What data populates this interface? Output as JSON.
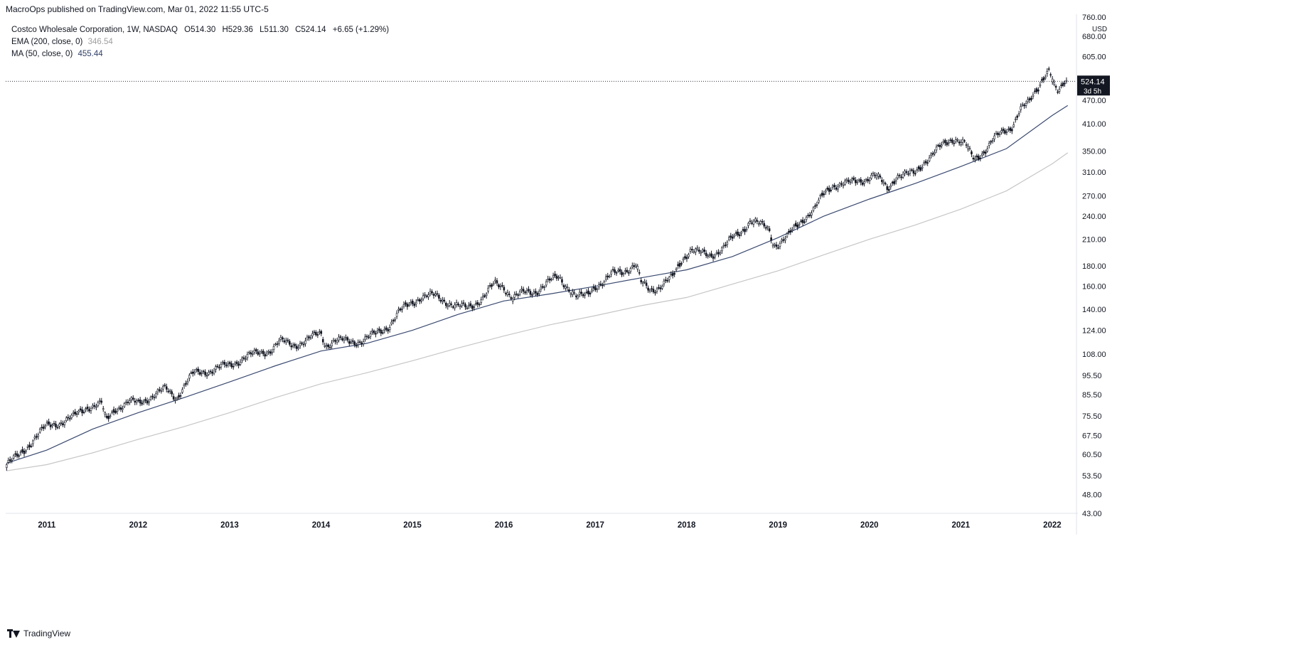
{
  "header": {
    "publisher": "MacroOps published on TradingView.com, Mar 01, 2022 11:55 UTC-5"
  },
  "legend": {
    "symbol": "Costco Wholesale Corporation, 1W, NASDAQ",
    "open": "O514.30",
    "high": "H529.36",
    "low": "L511.30",
    "close": "C524.14",
    "change": "+6.65 (+1.29%)",
    "ema_label": "EMA (200, close, 0)",
    "ema_value": "346.54",
    "ma_label": "MA (50, close, 0)",
    "ma_value": "455.44"
  },
  "price_badge": {
    "price": "524.14",
    "countdown": "3d 5h"
  },
  "footer": {
    "brand": "TradingView"
  },
  "colors": {
    "candle": "#131722",
    "ma50": "#3b4a70",
    "ema200": "#c6c6c6",
    "badge_bg": "#131722",
    "badge_text": "#ffffff"
  },
  "chart_data": {
    "type": "line",
    "y_scale": "log",
    "y_currency": "USD",
    "y_ticks": [
      "760.00",
      "680.00",
      "605.00",
      "470.00",
      "410.00",
      "350.00",
      "310.00",
      "270.00",
      "240.00",
      "210.00",
      "180.00",
      "160.00",
      "140.00",
      "124.00",
      "108.00",
      "95.50",
      "85.50",
      "75.50",
      "67.50",
      "60.50",
      "53.50",
      "48.00",
      "43.00"
    ],
    "x_ticks": [
      "2011",
      "2012",
      "2013",
      "2014",
      "2015",
      "2016",
      "2017",
      "2018",
      "2019",
      "2020",
      "2021",
      "2022"
    ],
    "ylim": [
      43,
      760
    ],
    "xlim": [
      2010.55,
      2022.25
    ],
    "last_price": 524.14,
    "price_series": {
      "name": "",
      "points": [
        [
          2010.56,
          57
        ],
        [
          2010.7,
          60
        ],
        [
          2010.85,
          66
        ],
        [
          2011.0,
          71
        ],
        [
          2011.15,
          73
        ],
        [
          2011.3,
          75
        ],
        [
          2011.45,
          80
        ],
        [
          2011.6,
          81
        ],
        [
          2011.65,
          73
        ],
        [
          2011.75,
          79
        ],
        [
          2011.9,
          82
        ],
        [
          2012.0,
          81
        ],
        [
          2012.15,
          85
        ],
        [
          2012.3,
          88
        ],
        [
          2012.42,
          84
        ],
        [
          2012.5,
          90
        ],
        [
          2012.6,
          96
        ],
        [
          2012.75,
          98
        ],
        [
          2012.9,
          100
        ],
        [
          2013.0,
          101
        ],
        [
          2013.15,
          106
        ],
        [
          2013.3,
          108
        ],
        [
          2013.45,
          111
        ],
        [
          2013.55,
          116
        ],
        [
          2013.7,
          114
        ],
        [
          2013.85,
          117
        ],
        [
          2014.0,
          122
        ],
        [
          2014.05,
          114
        ],
        [
          2014.15,
          117
        ],
        [
          2014.3,
          116
        ],
        [
          2014.45,
          117
        ],
        [
          2014.6,
          121
        ],
        [
          2014.75,
          128
        ],
        [
          2014.85,
          137
        ],
        [
          2015.0,
          146
        ],
        [
          2015.1,
          151
        ],
        [
          2015.25,
          151
        ],
        [
          2015.4,
          146
        ],
        [
          2015.5,
          142
        ],
        [
          2015.6,
          141
        ],
        [
          2015.7,
          146
        ],
        [
          2015.8,
          152
        ],
        [
          2015.9,
          162
        ],
        [
          2016.0,
          160
        ],
        [
          2016.1,
          150
        ],
        [
          2016.2,
          153
        ],
        [
          2016.35,
          156
        ],
        [
          2016.5,
          164
        ],
        [
          2016.6,
          169
        ],
        [
          2016.7,
          160
        ],
        [
          2016.8,
          150
        ],
        [
          2016.9,
          151
        ],
        [
          2017.0,
          161
        ],
        [
          2017.1,
          164
        ],
        [
          2017.2,
          172
        ],
        [
          2017.35,
          177
        ],
        [
          2017.45,
          181
        ],
        [
          2017.5,
          163
        ],
        [
          2017.6,
          157
        ],
        [
          2017.7,
          160
        ],
        [
          2017.85,
          168
        ],
        [
          2017.95,
          187
        ],
        [
          2018.05,
          199
        ],
        [
          2018.15,
          193
        ],
        [
          2018.25,
          191
        ],
        [
          2018.4,
          200
        ],
        [
          2018.5,
          210
        ],
        [
          2018.6,
          220
        ],
        [
          2018.7,
          235
        ],
        [
          2018.8,
          228
        ],
        [
          2018.9,
          223
        ],
        [
          2018.95,
          205
        ],
        [
          2019.0,
          205
        ],
        [
          2019.1,
          212
        ],
        [
          2019.2,
          226
        ],
        [
          2019.3,
          240
        ],
        [
          2019.4,
          250
        ],
        [
          2019.5,
          271
        ],
        [
          2019.6,
          288
        ],
        [
          2019.7,
          290
        ],
        [
          2019.8,
          290
        ],
        [
          2019.95,
          298
        ],
        [
          2020.05,
          305
        ],
        [
          2020.15,
          290
        ],
        [
          2020.2,
          280
        ],
        [
          2020.3,
          305
        ],
        [
          2020.45,
          305
        ],
        [
          2020.5,
          307
        ],
        [
          2020.6,
          330
        ],
        [
          2020.7,
          345
        ],
        [
          2020.8,
          360
        ],
        [
          2020.9,
          375
        ],
        [
          2020.95,
          378
        ],
        [
          2021.05,
          365
        ],
        [
          2021.1,
          345
        ],
        [
          2021.15,
          330
        ],
        [
          2021.25,
          350
        ],
        [
          2021.35,
          375
        ],
        [
          2021.45,
          385
        ],
        [
          2021.55,
          400
        ],
        [
          2021.65,
          450
        ],
        [
          2021.75,
          460
        ],
        [
          2021.85,
          505
        ],
        [
          2021.9,
          540
        ],
        [
          2021.97,
          567
        ],
        [
          2022.02,
          510
        ],
        [
          2022.07,
          485
        ],
        [
          2022.14,
          520
        ],
        [
          2022.17,
          524
        ]
      ]
    },
    "ma50_series": {
      "name": "MA (50, close, 0)",
      "points": [
        [
          2010.56,
          57.5
        ],
        [
          2011.0,
          62
        ],
        [
          2011.5,
          70
        ],
        [
          2012.0,
          77
        ],
        [
          2012.5,
          84
        ],
        [
          2013.0,
          92
        ],
        [
          2013.5,
          101
        ],
        [
          2014.0,
          110
        ],
        [
          2014.5,
          115
        ],
        [
          2015.0,
          124
        ],
        [
          2015.5,
          136
        ],
        [
          2016.0,
          147
        ],
        [
          2016.5,
          153
        ],
        [
          2017.0,
          160
        ],
        [
          2017.5,
          168
        ],
        [
          2018.0,
          176
        ],
        [
          2018.5,
          190
        ],
        [
          2019.0,
          212
        ],
        [
          2019.5,
          240
        ],
        [
          2020.0,
          265
        ],
        [
          2020.5,
          290
        ],
        [
          2021.0,
          320
        ],
        [
          2021.5,
          355
        ],
        [
          2022.0,
          430
        ],
        [
          2022.17,
          455.44
        ]
      ]
    },
    "ema200_series": {
      "name": "EMA (200, close, 0)",
      "points": [
        [
          2010.56,
          55
        ],
        [
          2011.0,
          57
        ],
        [
          2011.5,
          61
        ],
        [
          2012.0,
          66
        ],
        [
          2012.5,
          71
        ],
        [
          2013.0,
          77
        ],
        [
          2013.5,
          84
        ],
        [
          2014.0,
          91
        ],
        [
          2014.5,
          97
        ],
        [
          2015.0,
          104
        ],
        [
          2015.5,
          112
        ],
        [
          2016.0,
          120
        ],
        [
          2016.5,
          128
        ],
        [
          2017.0,
          135
        ],
        [
          2017.5,
          143
        ],
        [
          2018.0,
          150
        ],
        [
          2018.5,
          162
        ],
        [
          2019.0,
          175
        ],
        [
          2019.5,
          192
        ],
        [
          2020.0,
          210
        ],
        [
          2020.5,
          228
        ],
        [
          2021.0,
          250
        ],
        [
          2021.5,
          278
        ],
        [
          2022.0,
          325
        ],
        [
          2022.17,
          346.54
        ]
      ]
    }
  }
}
